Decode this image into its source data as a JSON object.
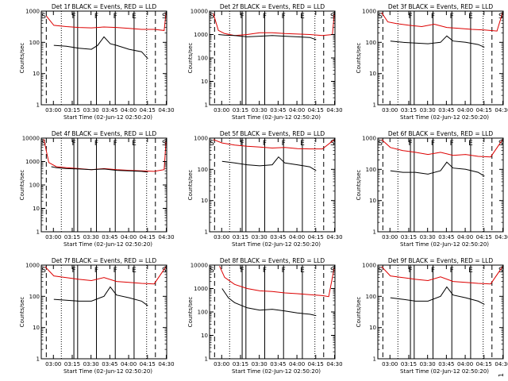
{
  "page": {
    "number": "1"
  },
  "colors": {
    "events": "#000000",
    "lld": "#dd0000",
    "frame": "#000000",
    "background": "#ffffff"
  },
  "chart_data": [
    {
      "type": "line",
      "title": "Det 1f BLACK = Events, RED = LLD",
      "xlabel": "Start Time (02-Jun-12 02:50:20)",
      "ylabel": "Counts/sec",
      "xticks": [
        "03:00",
        "03:15",
        "03:30",
        "03:45",
        "04:00",
        "04:15",
        "04:30"
      ],
      "yticks": [
        "1",
        "10",
        "100",
        "1000"
      ],
      "ylog": true,
      "ylim": [
        1,
        1000
      ],
      "xlim_minutes": [
        0,
        100
      ],
      "markers": [
        "S",
        "F",
        "F",
        "F",
        "E",
        "S"
      ],
      "series": [
        {
          "name": "LLD",
          "color": "#dd0000",
          "x": [
            4,
            10,
            20,
            30,
            40,
            50,
            60,
            70,
            80,
            90,
            98,
            99.5
          ],
          "y": [
            700,
            350,
            320,
            300,
            290,
            310,
            300,
            280,
            260,
            260,
            240,
            900
          ]
        },
        {
          "name": "Events",
          "color": "#000000",
          "x": [
            10,
            20,
            30,
            40,
            45,
            50,
            55,
            60,
            70,
            80,
            85
          ],
          "y": [
            80,
            75,
            65,
            60,
            80,
            150,
            90,
            80,
            60,
            50,
            30
          ]
        }
      ]
    },
    {
      "type": "line",
      "title": "Det 2f BLACK = Events, RED = LLD",
      "xlabel": "Start Time (02-Jun-12 02:50:20)",
      "ylabel": "Counts/sec",
      "xticks": [
        "03:00",
        "03:15",
        "03:30",
        "03:45",
        "04:00",
        "04:15",
        "04:30"
      ],
      "yticks": [
        "1",
        "10",
        "100",
        "1000",
        "10000"
      ],
      "ylog": true,
      "ylim": [
        1,
        10000
      ],
      "xlim_minutes": [
        0,
        100
      ],
      "markers": [
        "S",
        "F",
        "F",
        "F",
        "E",
        "S"
      ],
      "series": [
        {
          "name": "LLD",
          "color": "#dd0000",
          "x": [
            3,
            7,
            12,
            20,
            30,
            40,
            50,
            60,
            70,
            80,
            90,
            98,
            99.5
          ],
          "y": [
            8000,
            1500,
            1100,
            900,
            1000,
            1200,
            1200,
            1100,
            1050,
            1000,
            900,
            1000,
            8000
          ]
        },
        {
          "name": "Events",
          "color": "#000000",
          "x": [
            7,
            12,
            20,
            30,
            40,
            50,
            60,
            70,
            80,
            85
          ],
          "y": [
            1000,
            950,
            900,
            800,
            850,
            900,
            850,
            800,
            750,
            600
          ]
        }
      ]
    },
    {
      "type": "line",
      "title": "Det 3f BLACK = Events, RED = LLD",
      "xlabel": "Start Time (02-Jun-12 02:50:20)",
      "ylabel": "Counts/sec",
      "xticks": [
        "03:00",
        "03:15",
        "03:30",
        "03:45",
        "04:00",
        "04:15",
        "04:30"
      ],
      "yticks": [
        "1",
        "10",
        "100",
        "1000"
      ],
      "ylog": true,
      "ylim": [
        1,
        1000
      ],
      "xlim_minutes": [
        0,
        100
      ],
      "markers": [
        "S",
        "F",
        "F",
        "F",
        "E",
        "S"
      ],
      "series": [
        {
          "name": "LLD",
          "color": "#dd0000",
          "x": [
            3,
            8,
            15,
            25,
            35,
            45,
            55,
            65,
            75,
            85,
            95,
            99.5
          ],
          "y": [
            900,
            450,
            400,
            350,
            320,
            380,
            300,
            280,
            260,
            250,
            230,
            900
          ]
        },
        {
          "name": "Events",
          "color": "#000000",
          "x": [
            10,
            20,
            30,
            40,
            50,
            55,
            60,
            70,
            80,
            85
          ],
          "y": [
            110,
            100,
            95,
            90,
            100,
            160,
            110,
            100,
            85,
            70
          ]
        }
      ]
    },
    {
      "type": "line",
      "title": "Det 4f BLACK = Events, RED = LLD",
      "xlabel": "Start Time (02-Jun-12 02:50:20)",
      "ylabel": "Counts/sec",
      "xticks": [
        "03:00",
        "03:15",
        "03:30",
        "03:45",
        "04:00",
        "04:15",
        "04:30"
      ],
      "yticks": [
        "1",
        "10",
        "100",
        "1000",
        "10000"
      ],
      "ylog": true,
      "ylim": [
        1,
        10000
      ],
      "xlim_minutes": [
        0,
        100
      ],
      "markers": [
        "S",
        "F",
        "F",
        "F",
        "E",
        "S"
      ],
      "series": [
        {
          "name": "LLD",
          "color": "#dd0000",
          "x": [
            2,
            6,
            12,
            20,
            30,
            40,
            50,
            60,
            70,
            80,
            90,
            98,
            99.5
          ],
          "y": [
            9000,
            900,
            600,
            550,
            500,
            450,
            500,
            450,
            420,
            400,
            380,
            450,
            8000
          ]
        },
        {
          "name": "Events",
          "color": "#000000",
          "x": [
            8,
            12,
            20,
            30,
            40,
            50,
            60,
            70,
            80,
            85
          ],
          "y": [
            600,
            550,
            500,
            480,
            450,
            480,
            420,
            400,
            380,
            350
          ]
        }
      ]
    },
    {
      "type": "line",
      "title": "Det 5f BLACK = Events, RED = LLD",
      "xlabel": "Start Time (02-Jun-12 02:50:20)",
      "ylabel": "Counts/sec",
      "xticks": [
        "03:00",
        "03:15",
        "03:30",
        "03:45",
        "04:00",
        "04:15",
        "04:30"
      ],
      "yticks": [
        "1",
        "10",
        "100",
        "1000"
      ],
      "ylog": true,
      "ylim": [
        1,
        1000
      ],
      "xlim_minutes": [
        0,
        100
      ],
      "markers": [
        "S",
        "F",
        "F",
        "F",
        "E",
        "S"
      ],
      "series": [
        {
          "name": "LLD",
          "color": "#dd0000",
          "x": [
            3,
            10,
            20,
            30,
            40,
            50,
            60,
            70,
            80,
            90,
            99.5
          ],
          "y": [
            900,
            700,
            600,
            550,
            520,
            480,
            500,
            460,
            450,
            450,
            900
          ]
        },
        {
          "name": "Events",
          "color": "#000000",
          "x": [
            10,
            20,
            30,
            40,
            50,
            55,
            60,
            70,
            80,
            85
          ],
          "y": [
            180,
            160,
            140,
            130,
            140,
            250,
            160,
            140,
            120,
            90
          ]
        }
      ]
    },
    {
      "type": "line",
      "title": "Det 6f BLACK = Events, RED = LLD",
      "xlabel": "Start Time (02-Jun-12 02:50:20)",
      "ylabel": "Counts/sec",
      "xticks": [
        "03:00",
        "03:15",
        "03:30",
        "03:45",
        "04:00",
        "04:15",
        "04:30"
      ],
      "yticks": [
        "1",
        "10",
        "100",
        "1000"
      ],
      "ylog": true,
      "ylim": [
        1,
        1000
      ],
      "xlim_minutes": [
        0,
        100
      ],
      "markers": [
        "S",
        "F",
        "F",
        "F",
        "E",
        "S"
      ],
      "series": [
        {
          "name": "LLD",
          "color": "#dd0000",
          "x": [
            3,
            10,
            20,
            30,
            40,
            50,
            60,
            70,
            80,
            90,
            99.5
          ],
          "y": [
            900,
            500,
            400,
            350,
            300,
            350,
            280,
            300,
            260,
            250,
            900
          ]
        },
        {
          "name": "Events",
          "color": "#000000",
          "x": [
            10,
            20,
            30,
            40,
            50,
            55,
            60,
            70,
            80,
            85
          ],
          "y": [
            90,
            80,
            80,
            70,
            90,
            170,
            110,
            100,
            80,
            60
          ]
        }
      ]
    },
    {
      "type": "line",
      "title": "Det 7f BLACK = Events, RED = LLD",
      "xlabel": "Start Time (02-Jun-12 02:50:20)",
      "ylabel": "Counts/sec",
      "xticks": [
        "03:00",
        "03:15",
        "03:30",
        "03:45",
        "04:00",
        "04:15",
        "04:30"
      ],
      "yticks": [
        "1",
        "10",
        "100",
        "1000"
      ],
      "ylog": true,
      "ylim": [
        1,
        1000
      ],
      "xlim_minutes": [
        0,
        100
      ],
      "markers": [
        "S",
        "F",
        "F",
        "F",
        "E",
        "S"
      ],
      "series": [
        {
          "name": "LLD",
          "color": "#dd0000",
          "x": [
            3,
            10,
            20,
            30,
            40,
            50,
            60,
            70,
            80,
            90,
            99.5
          ],
          "y": [
            900,
            450,
            400,
            350,
            320,
            400,
            300,
            280,
            260,
            250,
            900
          ]
        },
        {
          "name": "Events",
          "color": "#000000",
          "x": [
            10,
            20,
            30,
            40,
            50,
            55,
            60,
            70,
            80,
            85
          ],
          "y": [
            80,
            75,
            70,
            70,
            100,
            200,
            110,
            90,
            70,
            50
          ]
        }
      ]
    },
    {
      "type": "line",
      "title": "Det 8f BLACK = Events, RED = LLD",
      "xlabel": "Start Time (02-Jun-12 02:50:20)",
      "ylabel": "Counts/sec",
      "xticks": [
        "03:00",
        "03:15",
        "03:30",
        "03:45",
        "04:00",
        "04:15",
        "04:30"
      ],
      "yticks": [
        "1",
        "10",
        "100",
        "1000",
        "10000"
      ],
      "ylog": true,
      "ylim": [
        1,
        10000
      ],
      "xlim_minutes": [
        0,
        100
      ],
      "markers": [
        "S",
        "F",
        "F",
        "F",
        "E",
        "S"
      ],
      "series": [
        {
          "name": "LLD",
          "color": "#dd0000",
          "x": [
            8,
            12,
            20,
            30,
            40,
            50,
            60,
            70,
            80,
            90,
            95,
            99.5
          ],
          "y": [
            9000,
            3000,
            1500,
            1000,
            800,
            750,
            650,
            600,
            550,
            500,
            450,
            8000
          ]
        },
        {
          "name": "Events",
          "color": "#000000",
          "x": [
            10,
            15,
            20,
            30,
            40,
            50,
            60,
            70,
            80,
            85
          ],
          "y": [
            1000,
            400,
            250,
            150,
            120,
            130,
            110,
            90,
            80,
            70
          ]
        }
      ]
    },
    {
      "type": "line",
      "title": "Det 9f BLACK = Events, RED = LLD",
      "xlabel": "Start Time (02-Jun-12 02:50:20)",
      "ylabel": "Counts/sec",
      "xticks": [
        "03:00",
        "03:15",
        "03:30",
        "03:45",
        "04:00",
        "04:15",
        "04:30"
      ],
      "yticks": [
        "1",
        "10",
        "100",
        "1000"
      ],
      "ylog": true,
      "ylim": [
        1,
        1000
      ],
      "xlim_minutes": [
        0,
        100
      ],
      "markers": [
        "S",
        "F",
        "F",
        "F",
        "E",
        "S"
      ],
      "series": [
        {
          "name": "LLD",
          "color": "#dd0000",
          "x": [
            3,
            10,
            20,
            30,
            40,
            50,
            60,
            70,
            80,
            90,
            99.5
          ],
          "y": [
            900,
            450,
            400,
            350,
            320,
            420,
            300,
            280,
            260,
            250,
            900
          ]
        },
        {
          "name": "Events",
          "color": "#000000",
          "x": [
            10,
            20,
            30,
            40,
            50,
            55,
            60,
            70,
            80,
            85
          ],
          "y": [
            90,
            80,
            70,
            70,
            100,
            200,
            110,
            90,
            70,
            55
          ]
        }
      ]
    }
  ]
}
